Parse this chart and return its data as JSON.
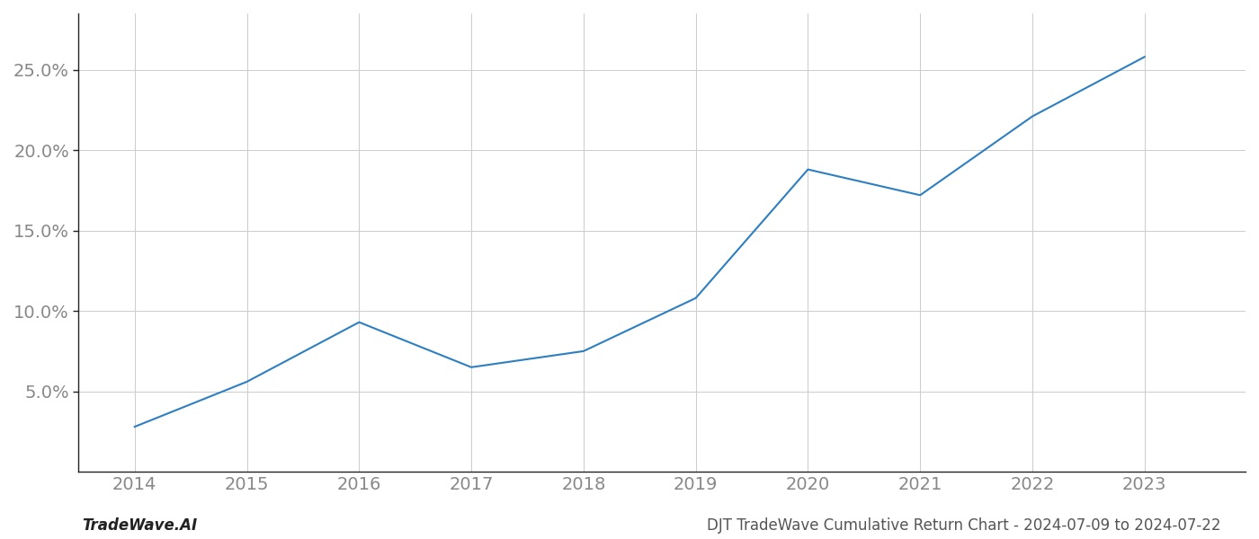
{
  "x_years": [
    2014,
    2015,
    2016,
    2017,
    2018,
    2019,
    2020,
    2021,
    2022,
    2023
  ],
  "y_values": [
    2.8,
    5.6,
    9.3,
    6.5,
    7.5,
    10.8,
    18.8,
    17.2,
    22.1,
    25.8
  ],
  "line_color": "#2d7fc1",
  "line_width": 1.5,
  "background_color": "#ffffff",
  "grid_color": "#cccccc",
  "xlim": [
    2013.5,
    2023.9
  ],
  "ylim": [
    0,
    28.5
  ],
  "yticks": [
    5.0,
    10.0,
    15.0,
    20.0,
    25.0
  ],
  "xticks": [
    2014,
    2015,
    2016,
    2017,
    2018,
    2019,
    2020,
    2021,
    2022,
    2023
  ],
  "xlabel": "",
  "ylabel": "",
  "footer_left": "TradeWave.AI",
  "footer_right": "DJT TradeWave Cumulative Return Chart - 2024-07-09 to 2024-07-22",
  "tick_fontsize": 14,
  "footer_fontsize": 12
}
